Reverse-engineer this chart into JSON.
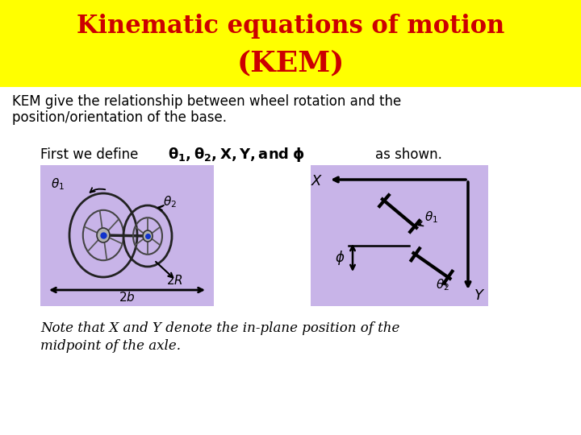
{
  "title_line1": "Kinematic equations of motion",
  "title_line2": "(KEM)",
  "title_color": "#cc0000",
  "title_bg_color": "#ffff00",
  "title_fontsize": 22,
  "title_fontsize2": 26,
  "body_text1": "KEM give the relationship between wheel rotation and the",
  "body_text2": "position/orientation of the base.",
  "body_fontsize": 12,
  "first_we_define": "First we define",
  "as_shown": "as shown.",
  "note_text1": "Note that X and Y denote the in-plane position of the",
  "note_text2": "midpoint of the axle.",
  "bg_color": "#ffffff",
  "box_color": "#c8b4e8",
  "body_text_color": "#000000",
  "title_bar_height": 108
}
